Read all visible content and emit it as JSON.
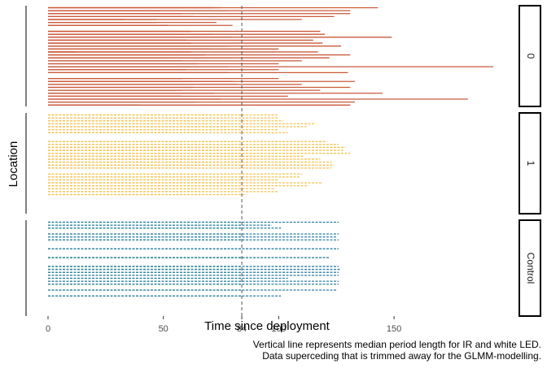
{
  "chart_data": {
    "type": "bar",
    "orientation": "horizontal",
    "xlabel": "Time since deployment",
    "ylabel": "Location",
    "xlim": [
      -8,
      204
    ],
    "x_ticks": [
      0,
      50,
      84,
      100,
      150
    ],
    "grid": false,
    "reference_line": {
      "x": 84,
      "style": "dashed"
    },
    "caption": [
      "Vertical line represents median period length for IR and white LED.",
      "Data superceding that is trimmed away for the GLMM-modelling."
    ],
    "panels": [
      {
        "label": "0",
        "line_style": "solid",
        "color_light": "#d94735",
        "color_dark": "#c95a3a",
        "bars": [
          {
            "stacked": 3,
            "values": [
              72,
              75,
              143
            ]
          },
          {
            "stacked": 3,
            "values": [
              48,
              78,
              131
            ]
          },
          {
            "stacked": 2,
            "values": [
              58,
              131
            ]
          },
          {
            "stacked": 2,
            "values": [
              63,
              124
            ]
          },
          {
            "stacked": 3,
            "values": [
              33,
              47,
              110
            ]
          },
          {
            "stacked": 2,
            "values": [
              47,
              73
            ]
          },
          {
            "stacked": 2,
            "values": [
              52,
              80
            ]
          },
          {
            "stacked": 1,
            "values": [
              0
            ]
          },
          {
            "stacked": 2,
            "values": [
              62,
              118
            ]
          },
          {
            "stacked": 3,
            "values": [
              58,
              72,
              120
            ]
          },
          {
            "stacked": 3,
            "values": [
              68,
              80,
              149
            ]
          },
          {
            "stacked": 2,
            "values": [
              60,
              115
            ]
          },
          {
            "stacked": 2,
            "values": [
              62,
              119
            ]
          },
          {
            "stacked": 3,
            "values": [
              62,
              78,
              127
            ]
          },
          {
            "stacked": 2,
            "values": [
              70,
              100
            ]
          },
          {
            "stacked": 3,
            "values": [
              12,
              62,
              117
            ]
          },
          {
            "stacked": 2,
            "values": [
              68,
              131
            ]
          },
          {
            "stacked": 3,
            "values": [
              50,
              80,
              122
            ]
          },
          {
            "stacked": 2,
            "values": [
              58,
              110
            ]
          },
          {
            "stacked": 2,
            "values": [
              65,
              100
            ]
          },
          {
            "stacked": 3,
            "values": [
              62,
              78,
              193
            ]
          },
          {
            "stacked": 2,
            "values": [
              60,
              100
            ]
          },
          {
            "stacked": 2,
            "values": [
              78,
              130
            ]
          },
          {
            "stacked": 1,
            "values": [
              0
            ]
          },
          {
            "stacked": 2,
            "values": [
              58,
              100
            ]
          },
          {
            "stacked": 3,
            "values": [
              62,
              80,
              133
            ]
          },
          {
            "stacked": 2,
            "values": [
              82,
              110
            ]
          },
          {
            "stacked": 2,
            "values": [
              63,
              131
            ]
          },
          {
            "stacked": 2,
            "values": [
              58,
              118
            ]
          },
          {
            "stacked": 2,
            "values": [
              72,
              145
            ]
          },
          {
            "stacked": 2,
            "values": [
              58,
              104
            ]
          },
          {
            "stacked": 2,
            "values": [
              75,
              182
            ]
          },
          {
            "stacked": 2,
            "values": [
              64,
              133
            ]
          },
          {
            "stacked": 2,
            "values": [
              40,
              131
            ]
          }
        ]
      },
      {
        "label": "1",
        "line_style": "dashed",
        "color_light": "#e9b84a",
        "color_dark": "#f2c34e",
        "bars": [
          {
            "stacked": 2,
            "values": [
              83,
              100
            ]
          },
          {
            "stacked": 2,
            "values": [
              72,
              100
            ]
          },
          {
            "stacked": 2,
            "values": [
              62,
              102
            ]
          },
          {
            "stacked": 2,
            "values": [
              70,
              116
            ]
          },
          {
            "stacked": 2,
            "values": [
              78,
              112
            ]
          },
          {
            "stacked": 2,
            "values": [
              83,
              100
            ]
          },
          {
            "stacked": 2,
            "values": [
              67,
              104
            ]
          },
          {
            "stacked": 1,
            "values": [
              0
            ]
          },
          {
            "stacked": 1,
            "values": [
              0
            ]
          },
          {
            "stacked": 2,
            "values": [
              80,
              121
            ]
          },
          {
            "stacked": 2,
            "values": [
              75,
              126
            ]
          },
          {
            "stacked": 2,
            "values": [
              74,
              129
            ]
          },
          {
            "stacked": 2,
            "values": [
              75,
              128
            ]
          },
          {
            "stacked": 2,
            "values": [
              83,
              131
            ]
          },
          {
            "stacked": 2,
            "values": [
              84,
              111
            ]
          },
          {
            "stacked": 2,
            "values": [
              64,
              118
            ]
          },
          {
            "stacked": 2,
            "values": [
              83,
              123
            ]
          },
          {
            "stacked": 2,
            "values": [
              70,
              124
            ]
          },
          {
            "stacked": 2,
            "values": [
              64,
              123
            ]
          },
          {
            "stacked": 1,
            "values": [
              0
            ]
          },
          {
            "stacked": 2,
            "values": [
              80,
              110
            ]
          },
          {
            "stacked": 2,
            "values": [
              64,
              109
            ]
          },
          {
            "stacked": 2,
            "values": [
              70,
              100
            ]
          },
          {
            "stacked": 2,
            "values": [
              78,
              119
            ]
          },
          {
            "stacked": 2,
            "values": [
              83,
              113
            ]
          },
          {
            "stacked": 2,
            "values": [
              64,
              98
            ]
          },
          {
            "stacked": 2,
            "values": [
              68,
              100
            ]
          },
          {
            "stacked": 2,
            "values": [
              66,
              86
            ]
          }
        ]
      },
      {
        "label": "Control",
        "line_style": "dashed",
        "color_light": "#3aa56a",
        "color_dark": "#2c7fa0",
        "bars": [
          {
            "stacked": 2,
            "values": [
              84,
              126
            ]
          },
          {
            "stacked": 2,
            "values": [
              84,
              97
            ]
          },
          {
            "stacked": 2,
            "values": [
              84,
              101
            ]
          },
          {
            "stacked": 1,
            "values": [
              0
            ]
          },
          {
            "stacked": 2,
            "values": [
              84,
              126
            ]
          },
          {
            "stacked": 2,
            "values": [
              84,
              125
            ]
          },
          {
            "stacked": 2,
            "values": [
              84,
              126
            ]
          },
          {
            "stacked": 1,
            "values": [
              0
            ]
          },
          {
            "stacked": 1,
            "values": [
              0
            ]
          },
          {
            "stacked": 2,
            "values": [
              84,
              126
            ]
          },
          {
            "stacked": 1,
            "values": [
              0
            ]
          },
          {
            "stacked": 1,
            "values": [
              0
            ]
          },
          {
            "stacked": 2,
            "values": [
              84,
              122
            ]
          },
          {
            "stacked": 1,
            "values": [
              0
            ]
          },
          {
            "stacked": 1,
            "values": [
              0
            ]
          },
          {
            "stacked": 2,
            "values": [
              84,
              126
            ]
          },
          {
            "stacked": 2,
            "values": [
              84,
              127
            ]
          },
          {
            "stacked": 2,
            "values": [
              84,
              126
            ]
          },
          {
            "stacked": 2,
            "values": [
              84,
              126
            ]
          },
          {
            "stacked": 2,
            "values": [
              84,
              104
            ]
          },
          {
            "stacked": 2,
            "values": [
              84,
              126
            ]
          },
          {
            "stacked": 2,
            "values": [
              84,
              126
            ]
          },
          {
            "stacked": 1,
            "values": [
              0
            ]
          },
          {
            "stacked": 2,
            "values": [
              84,
              125
            ]
          },
          {
            "stacked": 1,
            "values": [
              0
            ]
          },
          {
            "stacked": 2,
            "values": [
              84,
              101
            ]
          }
        ]
      }
    ]
  }
}
